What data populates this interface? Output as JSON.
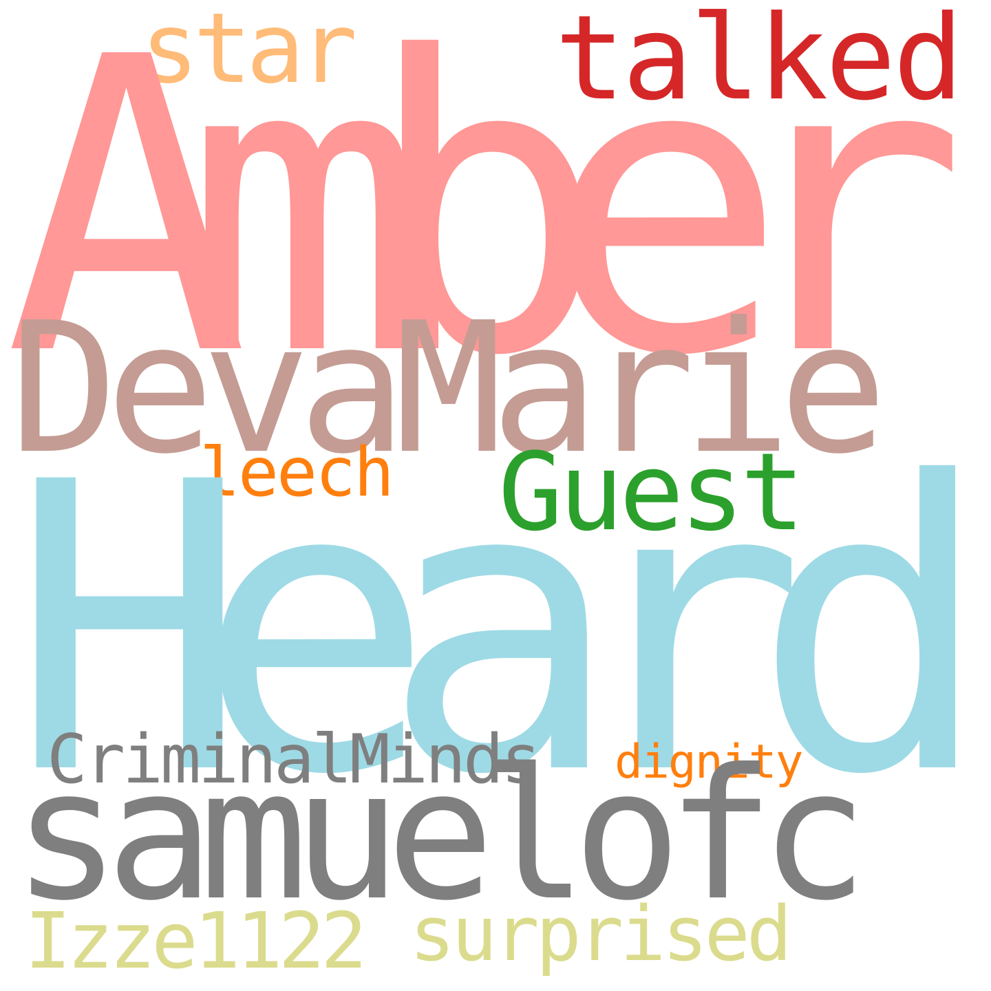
{
  "word_cloud": {
    "background_color": "#ffffff",
    "words": [
      {
        "id": "amber",
        "text": "Amber",
        "color": "#ff9896"
      },
      {
        "id": "heard",
        "text": "Heard",
        "color": "#9edae5"
      },
      {
        "id": "devamarie",
        "text": "DevaMarie",
        "color": "#c49c94"
      },
      {
        "id": "samuelofc",
        "text": "samuelofc",
        "color": "#7f7f7f"
      },
      {
        "id": "talked",
        "text": "talked",
        "color": "#d62728"
      },
      {
        "id": "star",
        "text": "star",
        "color": "#ffbb78"
      },
      {
        "id": "guest",
        "text": "Guest",
        "color": "#2ca02c"
      },
      {
        "id": "leech",
        "text": "leech",
        "color": "#ff7f0e"
      },
      {
        "id": "criminalminds",
        "text": "CriminalMinds",
        "color": "#7f7f7f"
      },
      {
        "id": "dignity",
        "text": "dignity",
        "color": "#ff7f0e"
      },
      {
        "id": "surprised",
        "text": "surprised",
        "color": "#dbdb8d"
      },
      {
        "id": "izze1122",
        "text": "Izze1122",
        "color": "#dbdb8d"
      }
    ]
  }
}
